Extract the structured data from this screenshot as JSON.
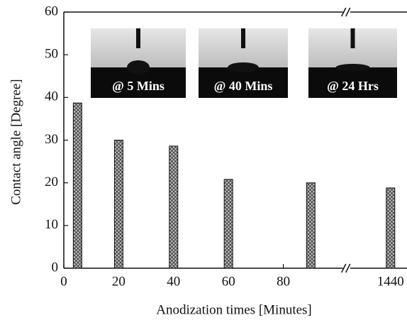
{
  "chart_data": {
    "type": "bar",
    "x_label": "Anodization times [Minutes]",
    "y_label": "Contact angle [Degree]",
    "x": [
      5,
      20,
      40,
      60,
      90,
      1440
    ],
    "values": [
      38.7,
      30,
      28.6,
      20.8,
      20,
      18.8
    ],
    "color": "#bdbdbd",
    "hatch": "crosshatch",
    "xlim": [
      0,
      1446
    ],
    "xbreak": [
      102,
      1425
    ],
    "xticks": [
      0,
      20,
      40,
      60,
      80,
      1440
    ],
    "ylim": [
      0,
      60
    ],
    "yticks": [
      0,
      10,
      20,
      30,
      40,
      50,
      60
    ],
    "annotations": [
      "@ 5 Mins",
      "@ 40 Mins",
      "@ 24 Hrs"
    ]
  }
}
